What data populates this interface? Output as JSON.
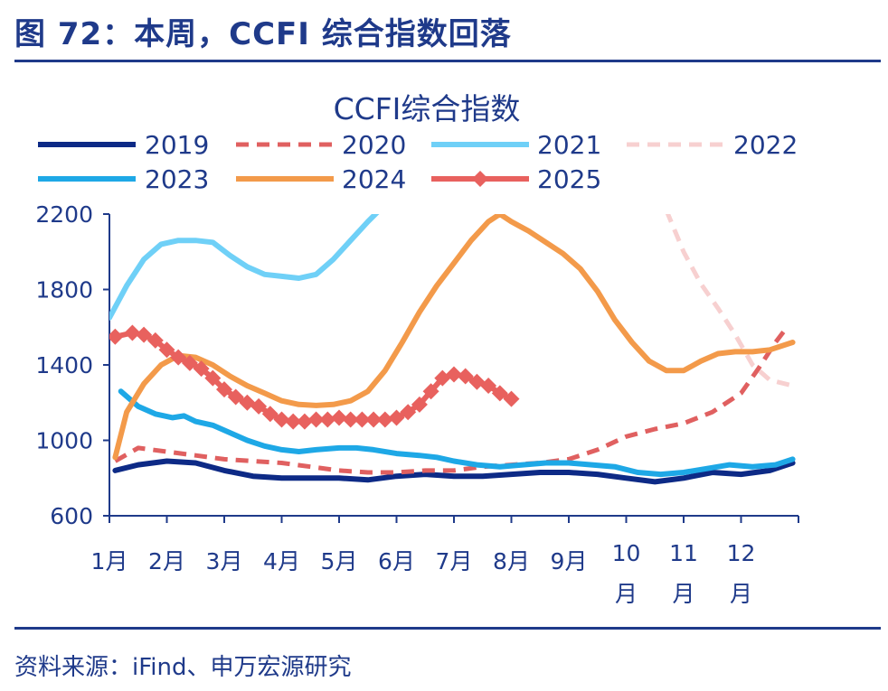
{
  "figure": {
    "title": "图 72：本周，CCFI 综合指数回落",
    "source": "资料来源：iFind、申万宏源研究"
  },
  "chart_data": {
    "type": "line",
    "title": "CCFI综合指数",
    "xlabel": "",
    "ylabel": "",
    "x_ticks": [
      "1月",
      "2月",
      "3月",
      "4月",
      "5月",
      "6月",
      "7月",
      "8月",
      "9月",
      "10月",
      "11月",
      "12月"
    ],
    "x_range": [
      1,
      13
    ],
    "ylim": [
      600,
      2200
    ],
    "y_ticks": [
      600,
      1000,
      1400,
      1800,
      2200
    ],
    "grid": false,
    "legend_placement": "top",
    "series": [
      {
        "name": "2019",
        "color": "#0d2a86",
        "dash": "solid",
        "width": 6,
        "marker": "none",
        "x": [
          1.1,
          1.5,
          2.0,
          2.5,
          3.0,
          3.5,
          4.0,
          4.5,
          5.0,
          5.5,
          6.0,
          6.5,
          7.0,
          7.5,
          8.0,
          8.5,
          9.0,
          9.5,
          10.0,
          10.5,
          11.0,
          11.5,
          12.0,
          12.5,
          12.9
        ],
        "y": [
          840,
          870,
          890,
          880,
          840,
          810,
          800,
          800,
          800,
          790,
          810,
          820,
          810,
          810,
          820,
          830,
          830,
          820,
          800,
          780,
          800,
          830,
          820,
          840,
          880
        ]
      },
      {
        "name": "2020",
        "color": "#e06060",
        "dash": "dashed",
        "width": 5,
        "marker": "none",
        "x": [
          1.1,
          1.5,
          2.0,
          2.5,
          3.0,
          3.5,
          4.0,
          4.5,
          5.0,
          5.5,
          6.0,
          6.5,
          7.0,
          7.5,
          8.0,
          8.5,
          9.0,
          9.5,
          10.0,
          10.5,
          11.0,
          11.5,
          12.0,
          12.3,
          12.6,
          12.8
        ],
        "y": [
          890,
          960,
          940,
          920,
          900,
          890,
          880,
          860,
          840,
          830,
          830,
          840,
          840,
          860,
          870,
          880,
          900,
          950,
          1020,
          1060,
          1090,
          1150,
          1250,
          1380,
          1520,
          1600
        ]
      },
      {
        "name": "2021",
        "color": "#6fd0f7",
        "dash": "solid",
        "width": 6,
        "marker": "none",
        "x": [
          1.0,
          1.3,
          1.6,
          1.9,
          2.2,
          2.5,
          2.8,
          3.1,
          3.4,
          3.7,
          4.0,
          4.3,
          4.6,
          4.9,
          5.2,
          5.5,
          5.7
        ],
        "y": [
          1650,
          1820,
          1960,
          2040,
          2060,
          2060,
          2050,
          1980,
          1920,
          1880,
          1870,
          1860,
          1880,
          1960,
          2060,
          2160,
          2220
        ]
      },
      {
        "name": "2022",
        "color": "#f7d0d0",
        "dash": "dashed",
        "width": 5,
        "marker": "none",
        "x": [
          10.7,
          11.0,
          11.3,
          11.6,
          11.9,
          12.2,
          12.5,
          12.9
        ],
        "y": [
          2220,
          2000,
          1830,
          1700,
          1560,
          1400,
          1320,
          1290
        ]
      },
      {
        "name": "2023",
        "color": "#1ea8e6",
        "dash": "solid",
        "width": 6,
        "marker": "none",
        "x": [
          1.2,
          1.5,
          1.8,
          2.1,
          2.3,
          2.5,
          2.8,
          3.1,
          3.4,
          3.7,
          4.0,
          4.3,
          4.6,
          5.0,
          5.3,
          5.6,
          6.0,
          6.4,
          6.7,
          7.0,
          7.4,
          7.8,
          8.2,
          8.6,
          9.0,
          9.4,
          9.8,
          10.2,
          10.6,
          11.0,
          11.4,
          11.8,
          12.2,
          12.6,
          12.9
        ],
        "y": [
          1260,
          1180,
          1140,
          1120,
          1130,
          1100,
          1080,
          1040,
          1000,
          970,
          950,
          940,
          950,
          960,
          960,
          950,
          930,
          920,
          910,
          890,
          870,
          860,
          870,
          880,
          880,
          870,
          860,
          830,
          820,
          830,
          850,
          870,
          860,
          870,
          900
        ]
      },
      {
        "name": "2024",
        "color": "#f39a4a",
        "dash": "solid",
        "width": 6,
        "marker": "none",
        "x": [
          1.1,
          1.3,
          1.6,
          1.9,
          2.2,
          2.5,
          2.8,
          3.1,
          3.4,
          3.7,
          4.0,
          4.3,
          4.6,
          4.9,
          5.2,
          5.5,
          5.8,
          6.1,
          6.4,
          6.7,
          7.0,
          7.3,
          7.6,
          7.8,
          8.0,
          8.3,
          8.6,
          8.9,
          9.2,
          9.5,
          9.8,
          10.1,
          10.4,
          10.7,
          11.0,
          11.3,
          11.6,
          11.9,
          12.2,
          12.5,
          12.9
        ],
        "y": [
          910,
          1150,
          1300,
          1400,
          1450,
          1440,
          1400,
          1340,
          1290,
          1250,
          1210,
          1190,
          1185,
          1190,
          1210,
          1260,
          1370,
          1520,
          1680,
          1820,
          1940,
          2060,
          2160,
          2200,
          2160,
          2110,
          2050,
          1990,
          1910,
          1790,
          1640,
          1520,
          1420,
          1370,
          1370,
          1420,
          1460,
          1470,
          1470,
          1480,
          1520
        ]
      },
      {
        "name": "2025",
        "color": "#e8615e",
        "dash": "solid",
        "width": 6,
        "marker": "diamond",
        "x": [
          1.1,
          1.4,
          1.6,
          1.8,
          2.0,
          2.2,
          2.4,
          2.6,
          2.8,
          3.0,
          3.2,
          3.4,
          3.6,
          3.8,
          4.0,
          4.2,
          4.4,
          4.6,
          4.8,
          5.0,
          5.2,
          5.4,
          5.6,
          5.8,
          6.0,
          6.2,
          6.4,
          6.6,
          6.8,
          7.0,
          7.2,
          7.4,
          7.6,
          7.8,
          8.0
        ],
        "y": [
          1550,
          1570,
          1560,
          1530,
          1480,
          1440,
          1410,
          1380,
          1330,
          1270,
          1230,
          1200,
          1180,
          1140,
          1110,
          1100,
          1100,
          1110,
          1110,
          1120,
          1110,
          1110,
          1110,
          1110,
          1120,
          1150,
          1190,
          1260,
          1330,
          1350,
          1340,
          1310,
          1290,
          1250,
          1220
        ]
      }
    ]
  }
}
